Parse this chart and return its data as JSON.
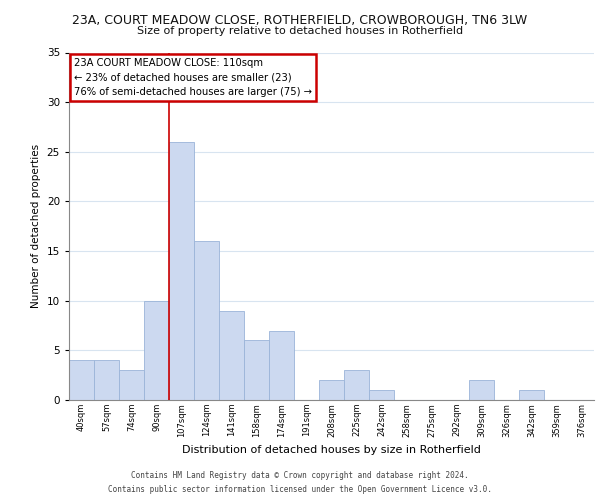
{
  "title_line1": "23A, COURT MEADOW CLOSE, ROTHERFIELD, CROWBOROUGH, TN6 3LW",
  "title_line2": "Size of property relative to detached houses in Rotherfield",
  "xlabel": "Distribution of detached houses by size in Rotherfield",
  "ylabel": "Number of detached properties",
  "bar_labels": [
    "40sqm",
    "57sqm",
    "74sqm",
    "90sqm",
    "107sqm",
    "124sqm",
    "141sqm",
    "158sqm",
    "174sqm",
    "191sqm",
    "208sqm",
    "225sqm",
    "242sqm",
    "258sqm",
    "275sqm",
    "292sqm",
    "309sqm",
    "326sqm",
    "342sqm",
    "359sqm",
    "376sqm"
  ],
  "bar_values": [
    4,
    4,
    3,
    10,
    26,
    16,
    9,
    6,
    7,
    0,
    2,
    3,
    1,
    0,
    0,
    0,
    2,
    0,
    1,
    0,
    0
  ],
  "bar_color": "#ccd9f0",
  "bar_edge_color": "#9ab4d8",
  "vline_color": "#cc0000",
  "vline_bar_index": 4,
  "ylim": [
    0,
    35
  ],
  "yticks": [
    0,
    5,
    10,
    15,
    20,
    25,
    30,
    35
  ],
  "annotation_text_line1": "23A COURT MEADOW CLOSE: 110sqm",
  "annotation_text_line2": "← 23% of detached houses are smaller (23)",
  "annotation_text_line3": "76% of semi-detached houses are larger (75) →",
  "annotation_box_color": "#ffffff",
  "annotation_border_color": "#cc0000",
  "footer_line1": "Contains HM Land Registry data © Crown copyright and database right 2024.",
  "footer_line2": "Contains public sector information licensed under the Open Government Licence v3.0.",
  "background_color": "#ffffff",
  "grid_color": "#d8e4f0"
}
